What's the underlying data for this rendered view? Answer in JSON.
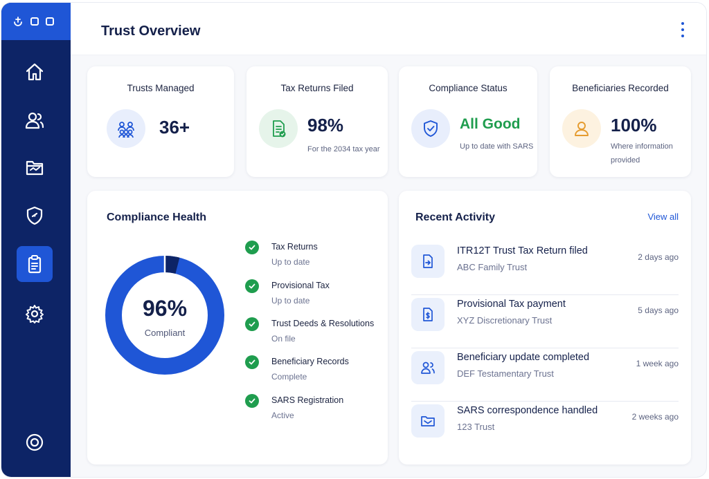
{
  "window": {
    "brand_icon": "app-icon"
  },
  "sidebar": {
    "items": [
      {
        "icon": "home-icon",
        "active": false
      },
      {
        "icon": "users-icon",
        "active": false
      },
      {
        "icon": "folder-icon",
        "active": false
      },
      {
        "icon": "shield-icon",
        "active": false
      },
      {
        "icon": "clipboard-icon",
        "active": true
      },
      {
        "icon": "gear-icon",
        "active": false
      }
    ],
    "bottom_icon": "target-icon"
  },
  "header": {
    "title": "Trust Overview",
    "menu_icon": "kebab-menu-icon"
  },
  "stats": [
    {
      "title": "Trusts Managed",
      "value": "36+",
      "subtitle": "",
      "icon": "people-group-icon"
    },
    {
      "title": "Tax Returns Filed",
      "value": "98%",
      "subtitle": "For the 2034 tax year",
      "icon": "document-check-icon"
    },
    {
      "title": "Compliance Status",
      "value": "All Good",
      "subtitle": "Up to date with SARS",
      "icon": "shield-check-icon"
    },
    {
      "title": "Beneficiaries Recorded",
      "value": "100%",
      "subtitle_line1": "Where information",
      "subtitle_line2": "provided",
      "icon": "person-icon"
    }
  ],
  "compliance": {
    "title": "Compliance Health",
    "percent_label": "96%",
    "percent_value": 96,
    "caption": "Compliant",
    "items": [
      {
        "label": "Tax Returns",
        "status": "Up to date"
      },
      {
        "label": "Provisional Tax",
        "status": "Up to date"
      },
      {
        "label": "Trust Deeds & Resolutions",
        "status": "On file"
      },
      {
        "label": "Beneficiary Records",
        "status": "Complete"
      },
      {
        "label": "SARS Registration",
        "status": "Active"
      }
    ]
  },
  "activity": {
    "title": "Recent Activity",
    "view_all": "View all",
    "items": [
      {
        "title": "ITR12T Trust Tax Return filed",
        "trust": "ABC Family Trust",
        "time": "2 days ago",
        "icon": "document-arrow-icon"
      },
      {
        "title": "Provisional Tax payment",
        "trust": "XYZ Discretionary Trust",
        "time": "5 days ago",
        "icon": "document-dollar-icon"
      },
      {
        "title": "Beneficiary update completed",
        "trust": "DEF Testamentary Trust",
        "time": "1 week ago",
        "icon": "users-icon"
      },
      {
        "title": "SARS correspondence handled",
        "trust": "123 Trust",
        "time": "2 weeks ago",
        "icon": "folder-mail-icon"
      }
    ]
  },
  "colors": {
    "sidebar": "#0d2466",
    "accent": "#1f56d6",
    "success": "#1f9d4e",
    "warning_icon": "#e59b2e",
    "donut_dark": "#0d2466"
  }
}
